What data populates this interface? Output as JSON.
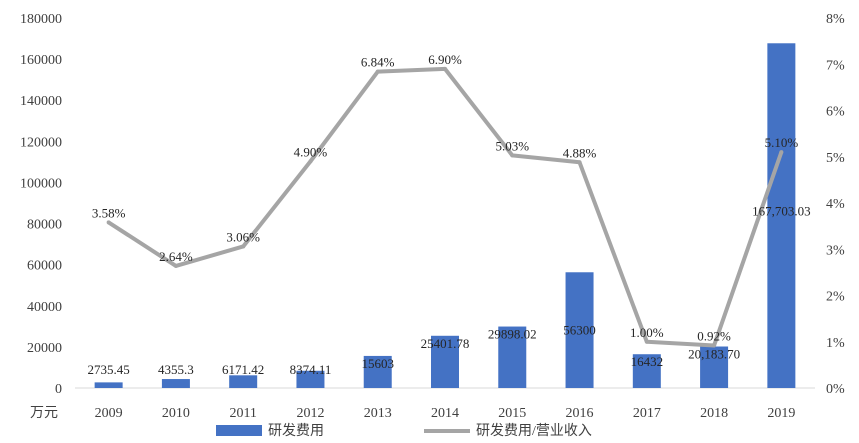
{
  "chart_data": {
    "type": "bar",
    "categories": [
      "2009",
      "2010",
      "2011",
      "2012",
      "2013",
      "2014",
      "2015",
      "2016",
      "2017",
      "2018",
      "2019"
    ],
    "series": [
      {
        "name": "研发费用",
        "type": "bar",
        "axis": "left",
        "color": "#4472C4",
        "values": [
          2735.45,
          4355.3,
          6171.42,
          8374.11,
          15603,
          25401.78,
          29898.02,
          56300,
          16432,
          20183.7,
          167703.03
        ],
        "labels": [
          "2735.45",
          "4355.3",
          "6171.42",
          "8374.11",
          "15603",
          "25401.78",
          "29898.02",
          "56300",
          "16432",
          "20,183.70",
          "167,703.03"
        ]
      },
      {
        "name": "研发费用/营业收入",
        "type": "line",
        "axis": "right",
        "color": "#A5A5A5",
        "values": [
          3.58,
          2.64,
          3.06,
          4.9,
          6.84,
          6.9,
          5.03,
          4.88,
          1.0,
          0.92,
          5.1
        ],
        "labels": [
          "3.58%",
          "2.64%",
          "3.06%",
          "4.90%",
          "6.84%",
          "6.90%",
          "5.03%",
          "4.88%",
          "1.00%",
          "0.92%",
          "5.10%"
        ]
      }
    ],
    "y_left": {
      "range": [
        0,
        180000
      ],
      "ticks": [
        "0",
        "20000",
        "40000",
        "60000",
        "80000",
        "100000",
        "120000",
        "140000",
        "160000",
        "180000"
      ],
      "unit_label": "万元"
    },
    "y_right": {
      "range": [
        0,
        8
      ],
      "ticks": [
        "0%",
        "1%",
        "2%",
        "3%",
        "4%",
        "5%",
        "6%",
        "7%",
        "8%"
      ]
    },
    "grid": false,
    "legend": "bottom"
  }
}
